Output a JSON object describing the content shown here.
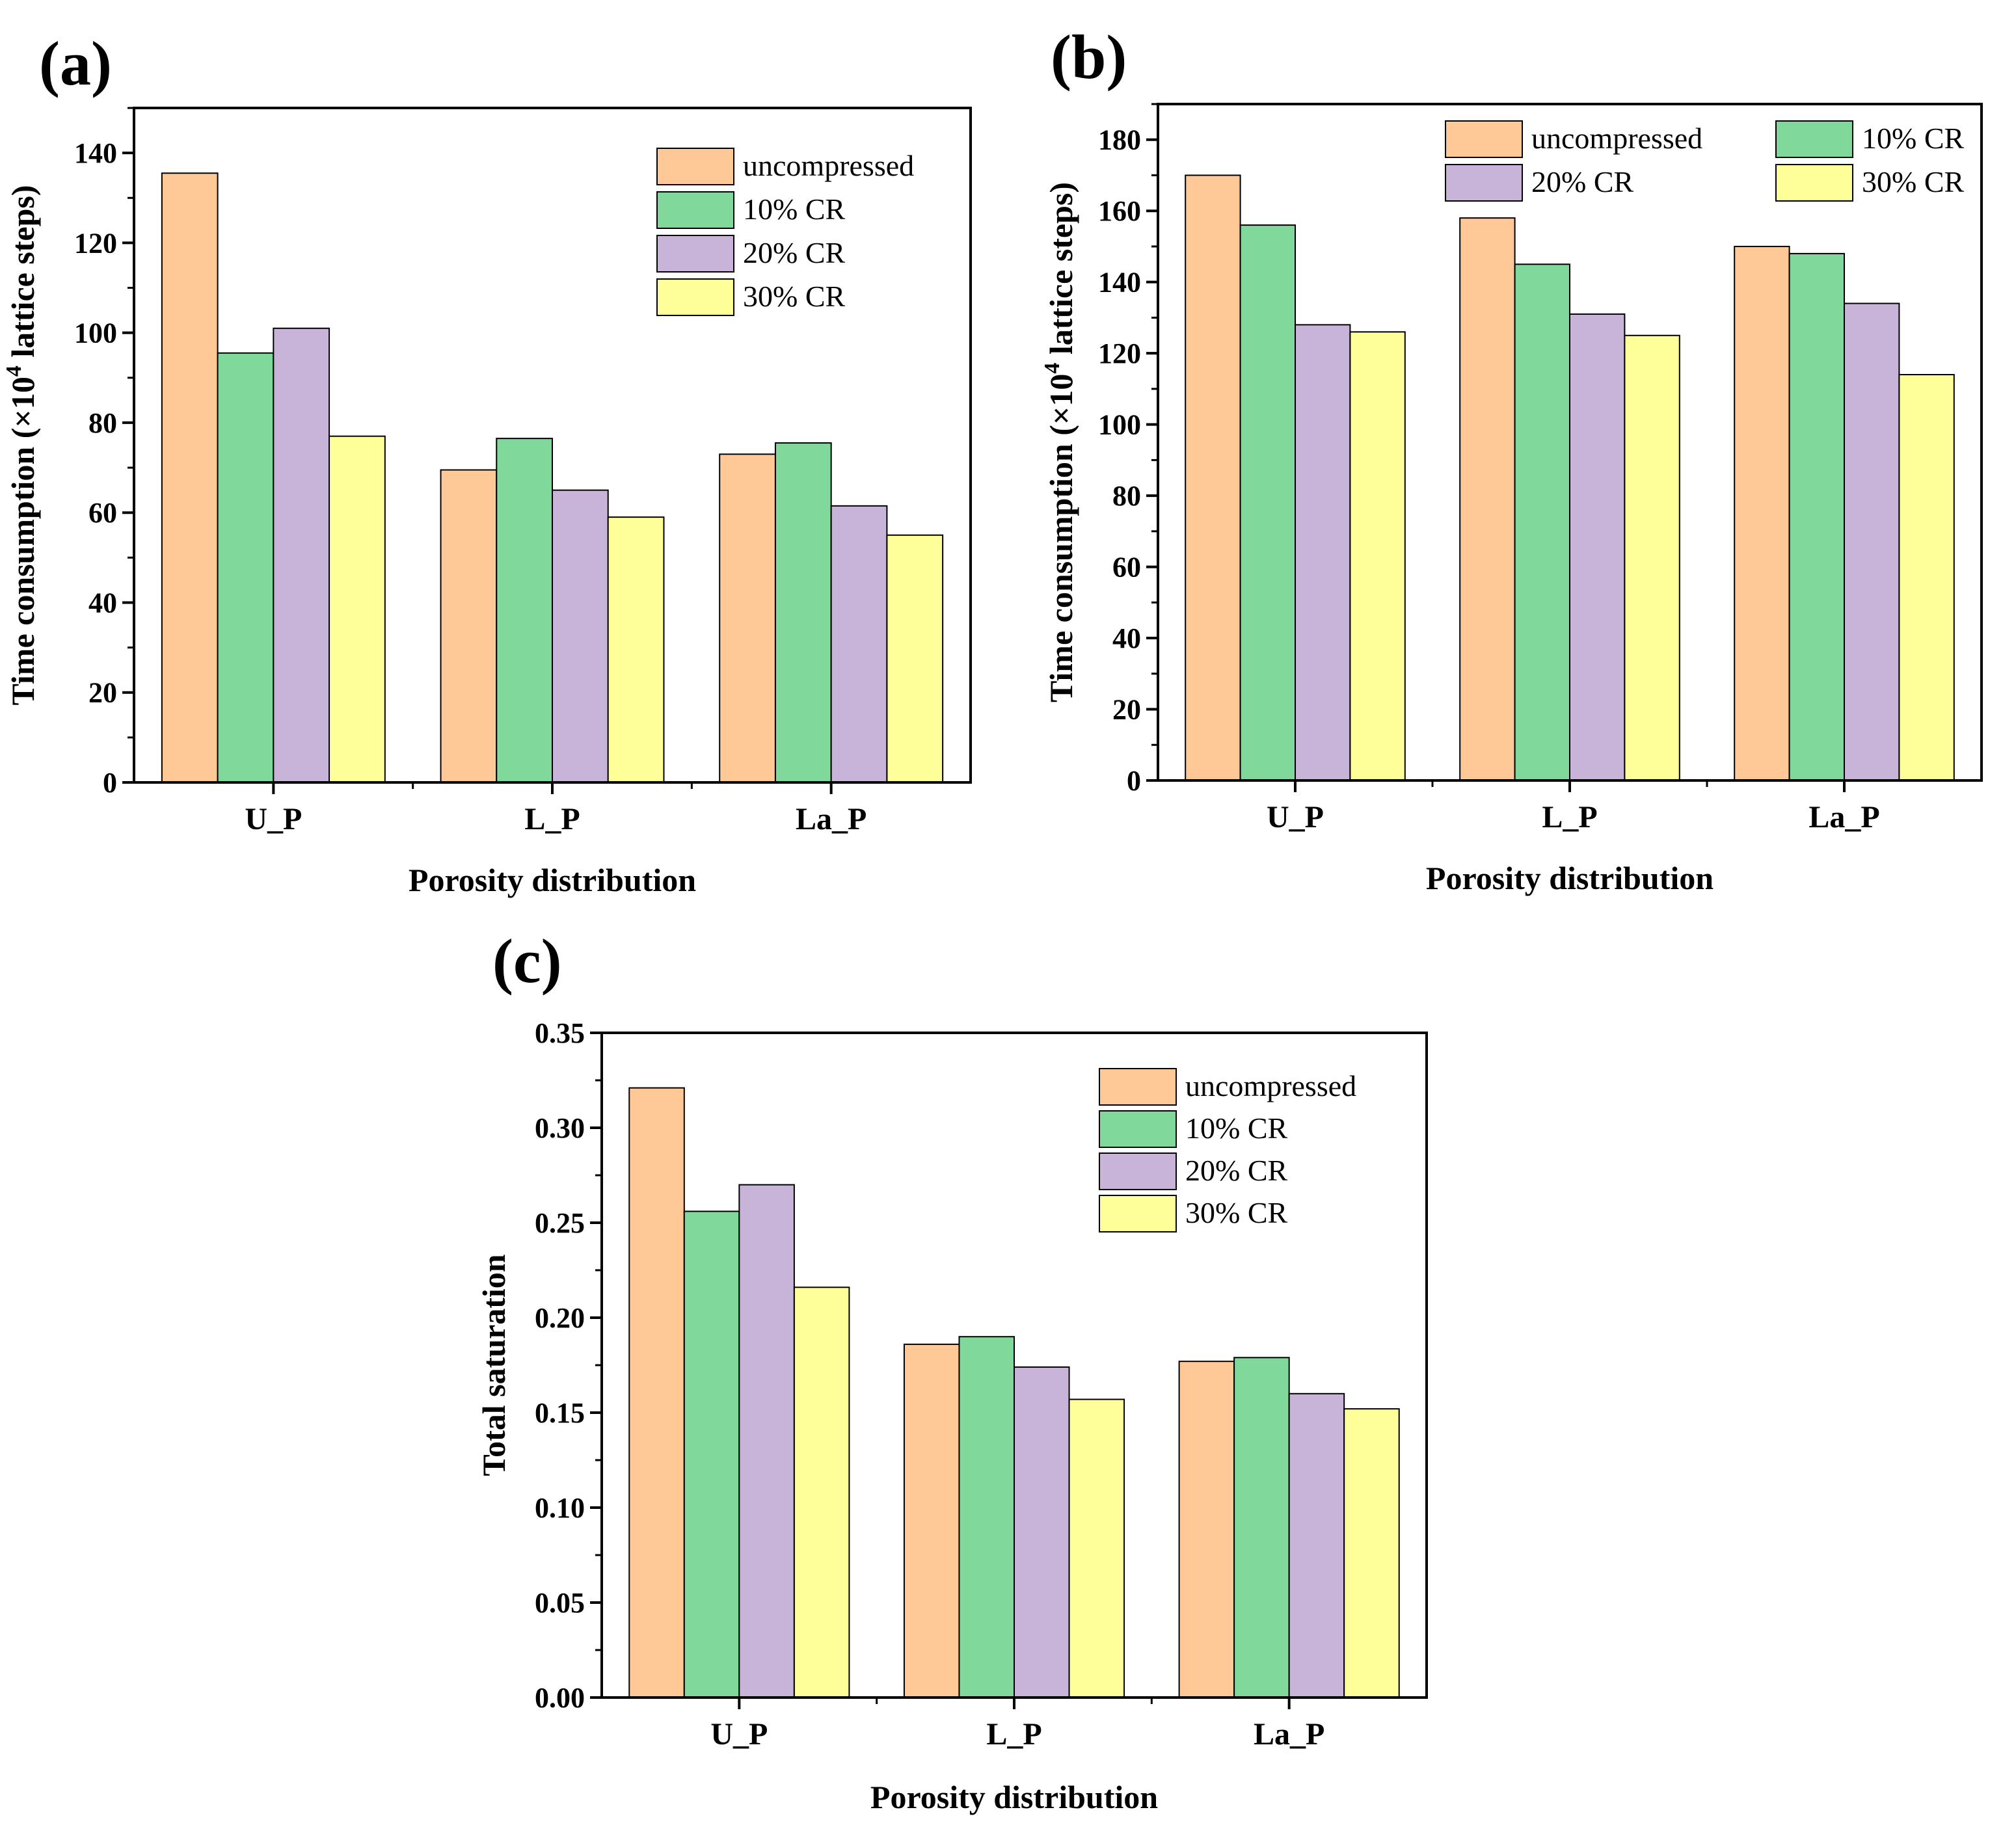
{
  "chart_data": [
    {
      "panel_label": "(a)",
      "type": "bar",
      "categories": [
        "U_P",
        "L_P",
        "La_P"
      ],
      "series": [
        {
          "name": "uncompressed",
          "color": "#FFC896",
          "values": [
            135.5,
            69.5,
            73
          ]
        },
        {
          "name": "10% CR",
          "color": "#80D89A",
          "values": [
            95.5,
            76.5,
            75.5
          ]
        },
        {
          "name": "20% CR",
          "color": "#C8B4D8",
          "values": [
            101,
            65,
            61.5
          ]
        },
        {
          "name": "30% CR",
          "color": "#FFFF99",
          "values": [
            77,
            59,
            55
          ]
        }
      ],
      "xlabel": "Porosity distribution",
      "ylabel_main": "Time consumption (×10",
      "ylabel_sup": "4",
      "ylabel_rest": " lattice steps)",
      "ylim": [
        0,
        150
      ],
      "yticks": [
        0,
        20,
        40,
        60,
        80,
        100,
        120,
        140
      ],
      "ytick_labels": [
        "0",
        "20",
        "40",
        "60",
        "80",
        "100",
        "120",
        "140"
      ],
      "legend": "top-right",
      "legend_columns": 1,
      "grid": false
    },
    {
      "panel_label": "(b)",
      "type": "bar",
      "categories": [
        "U_P",
        "L_P",
        "La_P"
      ],
      "series": [
        {
          "name": "uncompressed",
          "color": "#FFC896",
          "values": [
            170,
            158,
            150
          ]
        },
        {
          "name": "10% CR",
          "color": "#80D89A",
          "values": [
            156,
            145,
            148
          ]
        },
        {
          "name": "20% CR",
          "color": "#C8B4D8",
          "values": [
            128,
            131,
            134
          ]
        },
        {
          "name": "30% CR",
          "color": "#FFFF99",
          "values": [
            126,
            125,
            114
          ]
        }
      ],
      "xlabel": "Porosity distribution",
      "ylabel_main": "Time consumption (×10",
      "ylabel_sup": "4",
      "ylabel_rest": " lattice steps)",
      "ylim": [
        0,
        190
      ],
      "yticks": [
        0,
        20,
        40,
        60,
        80,
        100,
        120,
        140,
        160,
        180
      ],
      "ytick_labels": [
        "0",
        "20",
        "40",
        "60",
        "80",
        "100",
        "120",
        "140",
        "160",
        "180"
      ],
      "legend": "top-right",
      "legend_columns": 2,
      "grid": false
    },
    {
      "panel_label": "(c)",
      "type": "bar",
      "categories": [
        "U_P",
        "L_P",
        "La_P"
      ],
      "series": [
        {
          "name": "uncompressed",
          "color": "#FFC896",
          "values": [
            0.321,
            0.186,
            0.177
          ]
        },
        {
          "name": "10% CR",
          "color": "#80D89A",
          "values": [
            0.256,
            0.19,
            0.179
          ]
        },
        {
          "name": "20% CR",
          "color": "#C8B4D8",
          "values": [
            0.27,
            0.174,
            0.16
          ]
        },
        {
          "name": "30% CR",
          "color": "#FFFF99",
          "values": [
            0.216,
            0.157,
            0.152
          ]
        }
      ],
      "xlabel": "Porosity distribution",
      "ylabel_main": "Total saturation",
      "ylabel_sup": "",
      "ylabel_rest": "",
      "ylim": [
        0,
        0.35
      ],
      "yticks": [
        0,
        0.05,
        0.1,
        0.15,
        0.2,
        0.25,
        0.3,
        0.35
      ],
      "ytick_labels": [
        "0.00",
        "0.05",
        "0.10",
        "0.15",
        "0.20",
        "0.25",
        "0.30",
        "0.35"
      ],
      "legend": "top-right",
      "legend_columns": 1,
      "grid": false
    }
  ]
}
